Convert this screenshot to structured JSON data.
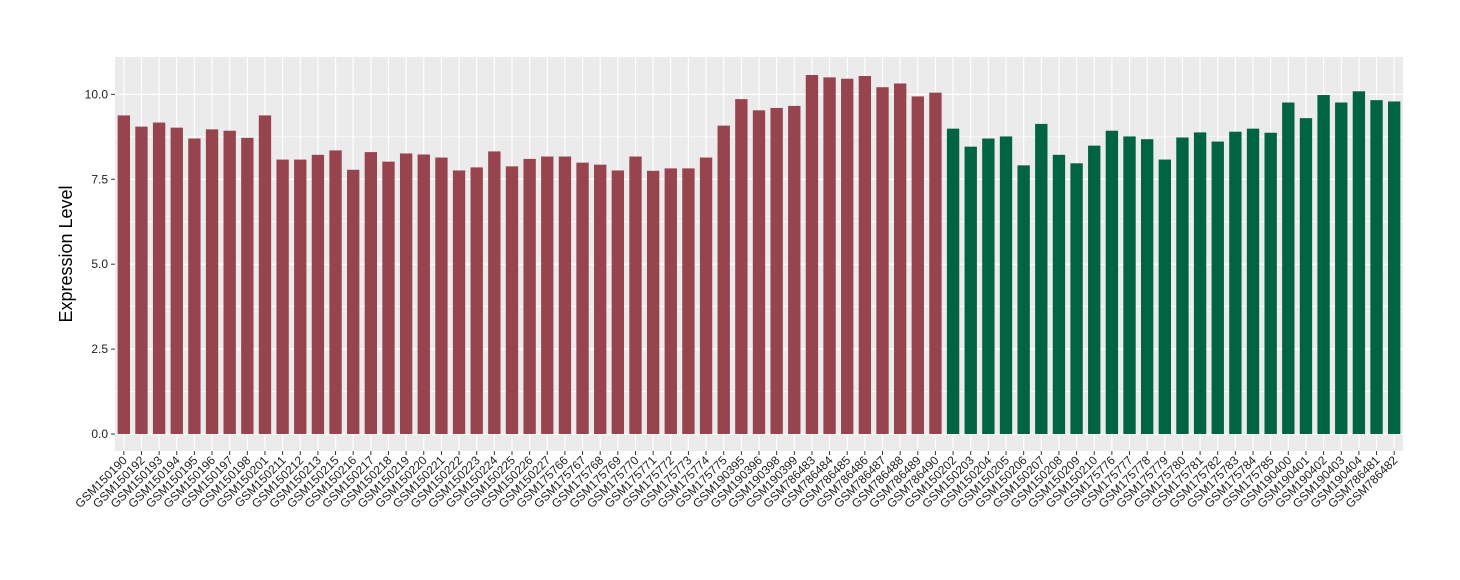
{
  "chart_data": {
    "type": "bar",
    "xlabel": "",
    "ylabel": "Expression Level",
    "ylim": [
      -0.5,
      11.1
    ],
    "yticks": [
      0.0,
      2.5,
      5.0,
      7.5,
      10.0
    ],
    "ytick_labels": [
      "0.0",
      "2.5",
      "5.0",
      "7.5",
      "10.0"
    ],
    "grid": true,
    "legend": "none",
    "colors": {
      "group1": "#97444f",
      "group2": "#006341",
      "panel": "#ebebeb",
      "grid": "#ffffff"
    },
    "categories": [
      "GSM150190",
      "GSM150192",
      "GSM150193",
      "GSM150194",
      "GSM150195",
      "GSM150196",
      "GSM150197",
      "GSM150198",
      "GSM150201",
      "GSM150211",
      "GSM150212",
      "GSM150213",
      "GSM150215",
      "GSM150216",
      "GSM150217",
      "GSM150218",
      "GSM150219",
      "GSM150220",
      "GSM150221",
      "GSM150222",
      "GSM150223",
      "GSM150224",
      "GSM150225",
      "GSM150226",
      "GSM150227",
      "GSM175766",
      "GSM175767",
      "GSM175768",
      "GSM175769",
      "GSM175770",
      "GSM175771",
      "GSM175772",
      "GSM175773",
      "GSM175774",
      "GSM175775",
      "GSM190395",
      "GSM190396",
      "GSM190398",
      "GSM190399",
      "GSM786483",
      "GSM786484",
      "GSM786485",
      "GSM786486",
      "GSM786487",
      "GSM786488",
      "GSM786489",
      "GSM786490",
      "GSM150202",
      "GSM150203",
      "GSM150204",
      "GSM150205",
      "GSM150206",
      "GSM150207",
      "GSM150208",
      "GSM150209",
      "GSM150210",
      "GSM175776",
      "GSM175777",
      "GSM175778",
      "GSM175779",
      "GSM175780",
      "GSM175781",
      "GSM175782",
      "GSM175783",
      "GSM175784",
      "GSM175785",
      "GSM190400",
      "GSM190401",
      "GSM190402",
      "GSM190403",
      "GSM190404",
      "GSM786481",
      "GSM786482"
    ],
    "values": [
      9.38,
      9.05,
      9.17,
      9.02,
      8.7,
      8.97,
      8.93,
      8.72,
      9.38,
      8.08,
      8.08,
      8.22,
      8.35,
      7.78,
      8.3,
      8.02,
      8.26,
      8.23,
      8.14,
      7.76,
      7.85,
      8.32,
      7.88,
      8.1,
      8.17,
      8.17,
      7.99,
      7.93,
      7.76,
      8.17,
      7.75,
      7.82,
      7.82,
      8.14,
      9.08,
      9.86,
      9.53,
      9.6,
      9.66,
      10.57,
      10.5,
      10.46,
      10.54,
      10.21,
      10.32,
      9.94,
      10.05,
      8.99,
      8.46,
      8.7,
      8.76,
      7.91,
      9.13,
      8.22,
      7.97,
      8.49,
      8.93,
      8.76,
      8.68,
      8.08,
      8.73,
      8.88,
      8.61,
      8.9,
      8.99,
      8.87,
      9.76,
      9.3,
      9.98,
      9.76,
      10.09,
      9.83,
      9.79
    ],
    "groups": [
      1,
      1,
      1,
      1,
      1,
      1,
      1,
      1,
      1,
      1,
      1,
      1,
      1,
      1,
      1,
      1,
      1,
      1,
      1,
      1,
      1,
      1,
      1,
      1,
      1,
      1,
      1,
      1,
      1,
      1,
      1,
      1,
      1,
      1,
      1,
      1,
      1,
      1,
      1,
      1,
      1,
      1,
      1,
      1,
      1,
      1,
      1,
      2,
      2,
      2,
      2,
      2,
      2,
      2,
      2,
      2,
      2,
      2,
      2,
      2,
      2,
      2,
      2,
      2,
      2,
      2,
      2,
      2,
      2,
      2,
      2,
      2,
      2
    ]
  }
}
